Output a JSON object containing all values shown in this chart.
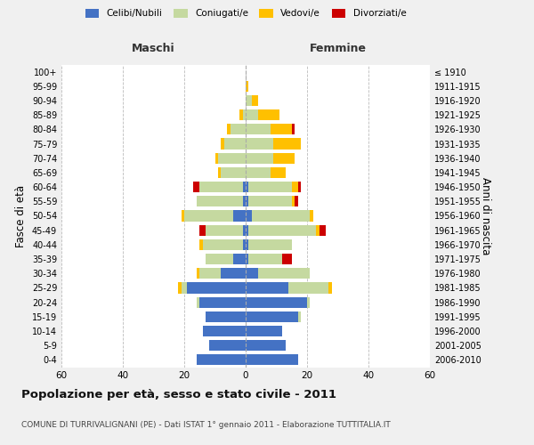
{
  "age_groups": [
    "0-4",
    "5-9",
    "10-14",
    "15-19",
    "20-24",
    "25-29",
    "30-34",
    "35-39",
    "40-44",
    "45-49",
    "50-54",
    "55-59",
    "60-64",
    "65-69",
    "70-74",
    "75-79",
    "80-84",
    "85-89",
    "90-94",
    "95-99",
    "100+"
  ],
  "birth_years": [
    "2006-2010",
    "2001-2005",
    "1996-2000",
    "1991-1995",
    "1986-1990",
    "1981-1985",
    "1976-1980",
    "1971-1975",
    "1966-1970",
    "1961-1965",
    "1956-1960",
    "1951-1955",
    "1946-1950",
    "1941-1945",
    "1936-1940",
    "1931-1935",
    "1926-1930",
    "1921-1925",
    "1916-1920",
    "1911-1915",
    "≤ 1910"
  ],
  "males": {
    "celibi": [
      16,
      12,
      14,
      13,
      15,
      19,
      8,
      4,
      1,
      1,
      4,
      1,
      1,
      0,
      0,
      0,
      0,
      0,
      0,
      0,
      0
    ],
    "coniugati": [
      0,
      0,
      0,
      0,
      1,
      2,
      7,
      9,
      13,
      12,
      16,
      15,
      14,
      8,
      9,
      7,
      5,
      1,
      0,
      0,
      0
    ],
    "vedovi": [
      0,
      0,
      0,
      0,
      0,
      1,
      1,
      0,
      1,
      0,
      1,
      0,
      0,
      1,
      1,
      1,
      1,
      1,
      0,
      0,
      0
    ],
    "divorziati": [
      0,
      0,
      0,
      0,
      0,
      0,
      0,
      0,
      0,
      2,
      0,
      0,
      2,
      0,
      0,
      0,
      0,
      0,
      0,
      0,
      0
    ]
  },
  "females": {
    "nubili": [
      17,
      13,
      12,
      17,
      20,
      14,
      4,
      1,
      1,
      1,
      2,
      1,
      1,
      0,
      0,
      0,
      0,
      0,
      0,
      0,
      0
    ],
    "coniugate": [
      0,
      0,
      0,
      1,
      1,
      13,
      17,
      11,
      14,
      22,
      19,
      14,
      14,
      8,
      9,
      9,
      8,
      4,
      2,
      0,
      0
    ],
    "vedove": [
      0,
      0,
      0,
      0,
      0,
      1,
      0,
      0,
      0,
      1,
      1,
      1,
      2,
      5,
      7,
      9,
      7,
      7,
      2,
      1,
      0
    ],
    "divorziate": [
      0,
      0,
      0,
      0,
      0,
      0,
      0,
      3,
      0,
      2,
      0,
      1,
      1,
      0,
      0,
      0,
      1,
      0,
      0,
      0,
      0
    ]
  },
  "colors": {
    "celibi": "#4472c4",
    "coniugati": "#c5d9a0",
    "vedovi": "#ffc000",
    "divorziati": "#cc0000"
  },
  "title": "Popolazione per età, sesso e stato civile - 2011",
  "subtitle": "COMUNE DI TURRIVALIGNANI (PE) - Dati ISTAT 1° gennaio 2011 - Elaborazione TUTTITALIA.IT",
  "ylabel_left": "Fasce di età",
  "ylabel_right": "Anni di nascita",
  "xlabel_left": "Maschi",
  "xlabel_right": "Femmine",
  "xlim": 60,
  "background_color": "#f0f0f0",
  "bar_background": "#ffffff"
}
